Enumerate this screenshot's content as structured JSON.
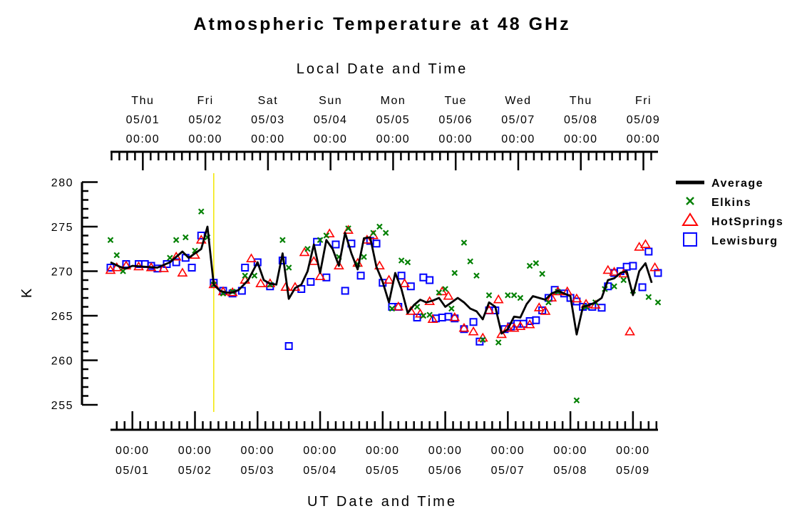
{
  "chart_data": {
    "type": "line",
    "title": "Atmospheric Temperature at 48 GHz",
    "top_axis_title": "Local Date and Time",
    "xlabel": "UT Date and Time",
    "ylabel": "K",
    "ylim": [
      253,
      281
    ],
    "xlim": [
      -0.35,
      8.4
    ],
    "x_units": "days since 05/01 00:00 UT",
    "yticks": [
      "255",
      "260",
      "265",
      "270",
      "275",
      "280"
    ],
    "bottom_ticks": [
      {
        "time": "00:00",
        "date": "05/01"
      },
      {
        "time": "00:00",
        "date": "05/02"
      },
      {
        "time": "00:00",
        "date": "05/03"
      },
      {
        "time": "00:00",
        "date": "05/04"
      },
      {
        "time": "00:00",
        "date": "05/05"
      },
      {
        "time": "00:00",
        "date": "05/06"
      },
      {
        "time": "00:00",
        "date": "05/07"
      },
      {
        "time": "00:00",
        "date": "05/08"
      },
      {
        "time": "00:00",
        "date": "05/09"
      }
    ],
    "top_ticks": [
      {
        "day": "Thu",
        "date": "05/01",
        "time": "00:00"
      },
      {
        "day": "Fri",
        "date": "05/02",
        "time": "00:00"
      },
      {
        "day": "Sat",
        "date": "05/03",
        "time": "00:00"
      },
      {
        "day": "Sun",
        "date": "05/04",
        "time": "00:00"
      },
      {
        "day": "Mon",
        "date": "05/05",
        "time": "00:00"
      },
      {
        "day": "Tue",
        "date": "05/06",
        "time": "00:00"
      },
      {
        "day": "Wed",
        "date": "05/07",
        "time": "00:00"
      },
      {
        "day": "Thu",
        "date": "05/08",
        "time": "00:00"
      },
      {
        "day": "Fri",
        "date": "05/09",
        "time": "00:00"
      }
    ],
    "local_offset_days": 0.1667,
    "vertical_marker_x": 1.3,
    "legend_position": "right",
    "grid": false,
    "series": [
      {
        "name": "Average",
        "marker": "line",
        "color": "#000000",
        "points": [
          [
            -0.35,
            271.0
          ],
          [
            -0.2,
            270.5
          ],
          [
            -0.1,
            270.3
          ],
          [
            0,
            270.6
          ],
          [
            0.2,
            270.5
          ],
          [
            0.4,
            270.4
          ],
          [
            0.6,
            271.0
          ],
          [
            0.8,
            272.2
          ],
          [
            0.9,
            271.5
          ],
          [
            1.0,
            272.0
          ],
          [
            1.1,
            272.5
          ],
          [
            1.2,
            275.0
          ],
          [
            1.3,
            268.5
          ],
          [
            1.4,
            267.8
          ],
          [
            1.5,
            267.6
          ],
          [
            1.6,
            267.6
          ],
          [
            1.7,
            267.9
          ],
          [
            1.85,
            269.0
          ],
          [
            2.0,
            271.0
          ],
          [
            2.1,
            269.0
          ],
          [
            2.2,
            268.6
          ],
          [
            2.3,
            268.5
          ],
          [
            2.4,
            272.0
          ],
          [
            2.5,
            266.9
          ],
          [
            2.6,
            268.1
          ],
          [
            2.7,
            268.5
          ],
          [
            2.8,
            270.0
          ],
          [
            2.9,
            273.0
          ],
          [
            3.0,
            269.8
          ],
          [
            3.1,
            273.5
          ],
          [
            3.2,
            272.5
          ],
          [
            3.3,
            270.6
          ],
          [
            3.4,
            274.3
          ],
          [
            3.5,
            272.0
          ],
          [
            3.6,
            270.2
          ],
          [
            3.7,
            273.7
          ],
          [
            3.8,
            273.8
          ],
          [
            3.9,
            270.5
          ],
          [
            4.0,
            268.8
          ],
          [
            4.1,
            266.5
          ],
          [
            4.2,
            269.8
          ],
          [
            4.3,
            268.0
          ],
          [
            4.4,
            265.3
          ],
          [
            4.5,
            266.2
          ],
          [
            4.6,
            266.8
          ],
          [
            4.7,
            266.5
          ],
          [
            4.8,
            266.7
          ],
          [
            4.9,
            267.0
          ],
          [
            5.0,
            266.0
          ],
          [
            5.1,
            266.5
          ],
          [
            5.2,
            267.0
          ],
          [
            5.3,
            266.5
          ],
          [
            5.4,
            265.8
          ],
          [
            5.5,
            265.5
          ],
          [
            5.6,
            264.6
          ],
          [
            5.7,
            266.5
          ],
          [
            5.8,
            266.0
          ],
          [
            5.9,
            263.0
          ],
          [
            6.0,
            263.5
          ],
          [
            6.1,
            264.9
          ],
          [
            6.2,
            264.8
          ],
          [
            6.3,
            266.3
          ],
          [
            6.4,
            267.2
          ],
          [
            6.5,
            267.0
          ],
          [
            6.6,
            266.8
          ],
          [
            6.7,
            267.5
          ],
          [
            6.8,
            267.8
          ],
          [
            6.9,
            267.5
          ],
          [
            7.0,
            267.2
          ],
          [
            7.1,
            262.9
          ],
          [
            7.2,
            266.0
          ],
          [
            7.3,
            266.2
          ],
          [
            7.4,
            266.5
          ],
          [
            7.5,
            267.0
          ],
          [
            7.6,
            269.0
          ],
          [
            7.7,
            269.2
          ],
          [
            7.8,
            269.8
          ],
          [
            7.9,
            270.0
          ],
          [
            8.0,
            267.3
          ],
          [
            8.1,
            270.0
          ],
          [
            8.2,
            270.9
          ],
          [
            8.3,
            268.7
          ]
        ]
      },
      {
        "name": "Elkins",
        "marker": "x",
        "color": "#008000",
        "points": [
          [
            -0.35,
            273.5
          ],
          [
            -0.25,
            271.8
          ],
          [
            -0.15,
            270.0
          ],
          [
            0.6,
            271.5
          ],
          [
            0.7,
            273.5
          ],
          [
            0.85,
            273.8
          ],
          [
            1.0,
            272.3
          ],
          [
            1.1,
            276.7
          ],
          [
            1.2,
            273.8
          ],
          [
            1.3,
            268.5
          ],
          [
            1.45,
            267.5
          ],
          [
            1.6,
            267.7
          ],
          [
            1.8,
            269.5
          ],
          [
            1.95,
            269.5
          ],
          [
            2.2,
            268.5
          ],
          [
            2.4,
            273.5
          ],
          [
            2.5,
            270.4
          ],
          [
            2.8,
            272.5
          ],
          [
            3.0,
            273.5
          ],
          [
            3.1,
            274.0
          ],
          [
            3.3,
            271.6
          ],
          [
            3.45,
            274.8
          ],
          [
            3.6,
            270.8
          ],
          [
            3.7,
            271.6
          ],
          [
            3.85,
            274.3
          ],
          [
            3.95,
            275.0
          ],
          [
            4.05,
            274.3
          ],
          [
            4.15,
            265.8
          ],
          [
            4.3,
            271.2
          ],
          [
            4.4,
            271.0
          ],
          [
            4.55,
            266.0
          ],
          [
            4.65,
            265.0
          ],
          [
            4.75,
            265.1
          ],
          [
            4.9,
            267.6
          ],
          [
            5.0,
            268.0
          ],
          [
            5.1,
            265.8
          ],
          [
            5.15,
            269.8
          ],
          [
            5.3,
            273.2
          ],
          [
            5.4,
            271.1
          ],
          [
            5.5,
            269.5
          ],
          [
            5.6,
            262.3
          ],
          [
            5.7,
            267.3
          ],
          [
            5.85,
            262.0
          ],
          [
            6.0,
            267.3
          ],
          [
            6.1,
            267.3
          ],
          [
            6.2,
            267.0
          ],
          [
            6.35,
            270.6
          ],
          [
            6.45,
            270.9
          ],
          [
            6.55,
            269.7
          ],
          [
            6.65,
            266.5
          ],
          [
            6.8,
            267.7
          ],
          [
            7.1,
            255.5
          ],
          [
            7.25,
            266.0
          ],
          [
            7.4,
            266.5
          ],
          [
            7.55,
            268.0
          ],
          [
            7.7,
            268.3
          ],
          [
            7.85,
            269.0
          ],
          [
            8.0,
            267.8
          ],
          [
            8.25,
            267.1
          ],
          [
            8.4,
            266.5
          ]
        ]
      },
      {
        "name": "HotSprings",
        "marker": "triangle",
        "color": "#ff0000",
        "points": [
          [
            -0.35,
            270.1
          ],
          [
            -0.25,
            270.4
          ],
          [
            -0.1,
            270.6
          ],
          [
            0.1,
            270.5
          ],
          [
            0.3,
            270.4
          ],
          [
            0.5,
            270.3
          ],
          [
            0.7,
            271.6
          ],
          [
            0.8,
            269.8
          ],
          [
            1.0,
            271.8
          ],
          [
            1.1,
            273.5
          ],
          [
            1.3,
            268.5
          ],
          [
            1.45,
            267.7
          ],
          [
            1.6,
            267.6
          ],
          [
            1.8,
            269.0
          ],
          [
            1.9,
            271.4
          ],
          [
            2.05,
            268.6
          ],
          [
            2.2,
            268.6
          ],
          [
            2.45,
            268.2
          ],
          [
            2.6,
            268.2
          ],
          [
            2.75,
            272.1
          ],
          [
            2.9,
            271.1
          ],
          [
            3.0,
            269.4
          ],
          [
            3.15,
            274.2
          ],
          [
            3.3,
            270.6
          ],
          [
            3.45,
            274.6
          ],
          [
            3.6,
            270.9
          ],
          [
            3.75,
            273.5
          ],
          [
            3.85,
            274.0
          ],
          [
            3.95,
            270.6
          ],
          [
            4.1,
            269.0
          ],
          [
            4.25,
            266.0
          ],
          [
            4.35,
            268.6
          ],
          [
            4.45,
            265.5
          ],
          [
            4.6,
            265.2
          ],
          [
            4.75,
            266.6
          ],
          [
            4.8,
            264.6
          ],
          [
            4.95,
            267.7
          ],
          [
            5.05,
            267.2
          ],
          [
            5.15,
            264.8
          ],
          [
            5.3,
            263.6
          ],
          [
            5.45,
            263.2
          ],
          [
            5.6,
            262.5
          ],
          [
            5.7,
            265.6
          ],
          [
            5.85,
            266.8
          ],
          [
            5.9,
            262.9
          ],
          [
            6.0,
            263.6
          ],
          [
            6.1,
            263.6
          ],
          [
            6.2,
            263.8
          ],
          [
            6.35,
            264.0
          ],
          [
            6.5,
            265.9
          ],
          [
            6.6,
            265.5
          ],
          [
            6.7,
            267.0
          ],
          [
            6.8,
            267.7
          ],
          [
            6.95,
            267.7
          ],
          [
            7.1,
            266.9
          ],
          [
            7.25,
            266.3
          ],
          [
            7.4,
            266.2
          ],
          [
            7.6,
            270.1
          ],
          [
            7.7,
            269.9
          ],
          [
            7.85,
            269.7
          ],
          [
            7.95,
            263.2
          ],
          [
            8.1,
            272.7
          ],
          [
            8.2,
            273.0
          ],
          [
            8.35,
            270.4
          ]
        ]
      },
      {
        "name": "Lewisburg",
        "marker": "square",
        "color": "#0000ff",
        "points": [
          [
            -0.35,
            270.4
          ],
          [
            -0.1,
            270.8
          ],
          [
            0.1,
            270.8
          ],
          [
            0.2,
            270.8
          ],
          [
            0.3,
            270.6
          ],
          [
            0.4,
            270.3
          ],
          [
            0.55,
            270.8
          ],
          [
            0.7,
            271.0
          ],
          [
            0.85,
            271.5
          ],
          [
            0.95,
            270.4
          ],
          [
            1.1,
            274.0
          ],
          [
            1.3,
            268.7
          ],
          [
            1.45,
            267.8
          ],
          [
            1.6,
            267.5
          ],
          [
            1.75,
            267.8
          ],
          [
            1.8,
            270.4
          ],
          [
            2.0,
            271.0
          ],
          [
            2.2,
            268.3
          ],
          [
            2.4,
            271.2
          ],
          [
            2.5,
            261.6
          ],
          [
            2.7,
            268.0
          ],
          [
            2.85,
            268.8
          ],
          [
            2.95,
            273.3
          ],
          [
            3.1,
            269.3
          ],
          [
            3.25,
            273.0
          ],
          [
            3.4,
            267.8
          ],
          [
            3.5,
            273.1
          ],
          [
            3.65,
            269.5
          ],
          [
            3.8,
            273.4
          ],
          [
            3.9,
            273.1
          ],
          [
            4.0,
            268.7
          ],
          [
            4.15,
            266.0
          ],
          [
            4.25,
            266.0
          ],
          [
            4.3,
            269.5
          ],
          [
            4.45,
            268.3
          ],
          [
            4.55,
            264.8
          ],
          [
            4.65,
            269.3
          ],
          [
            4.75,
            269.0
          ],
          [
            4.85,
            264.7
          ],
          [
            4.95,
            264.8
          ],
          [
            5.05,
            264.9
          ],
          [
            5.15,
            264.7
          ],
          [
            5.3,
            263.5
          ],
          [
            5.45,
            264.3
          ],
          [
            5.55,
            262.1
          ],
          [
            5.7,
            265.6
          ],
          [
            5.8,
            265.6
          ],
          [
            5.95,
            263.5
          ],
          [
            6.05,
            263.8
          ],
          [
            6.15,
            264.1
          ],
          [
            6.25,
            264.1
          ],
          [
            6.35,
            264.4
          ],
          [
            6.45,
            264.5
          ],
          [
            6.55,
            265.6
          ],
          [
            6.65,
            267.0
          ],
          [
            6.75,
            267.9
          ],
          [
            6.9,
            267.5
          ],
          [
            7.0,
            267.0
          ],
          [
            7.1,
            266.6
          ],
          [
            7.2,
            266.0
          ],
          [
            7.35,
            266.0
          ],
          [
            7.5,
            265.9
          ],
          [
            7.6,
            268.3
          ],
          [
            7.7,
            269.8
          ],
          [
            7.8,
            270.0
          ],
          [
            7.9,
            270.5
          ],
          [
            8.0,
            270.6
          ],
          [
            8.15,
            268.2
          ],
          [
            8.25,
            272.2
          ],
          [
            8.4,
            269.8
          ]
        ]
      }
    ]
  }
}
